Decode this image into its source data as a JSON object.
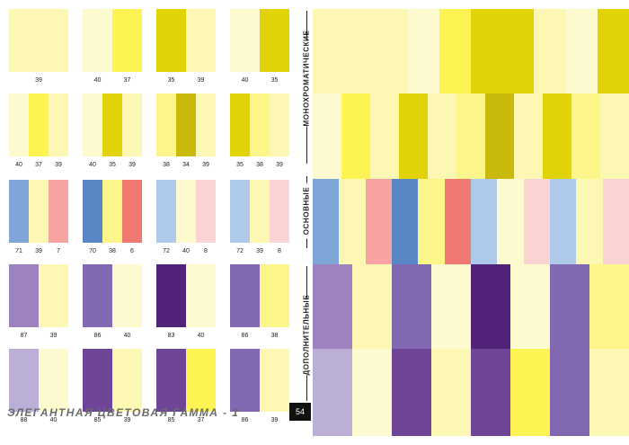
{
  "footer": {
    "title": "ЭЛЕГАНТНАЯ ЦВЕТОВАЯ ГАММА - 1",
    "page_number": "54"
  },
  "section_labels": {
    "mono": "МОНОХРОМАТИЧЕСКИЕ",
    "basic": "ОСНОВНЫЕ",
    "comp": "ДОПОЛНИТЕЛЬНЫЕ"
  },
  "palette": {
    "7": "#f7a3a1",
    "6": "#f07a71",
    "8": "#fad3d5",
    "34": "#c8b90a",
    "35": "#e2d208",
    "37": "#fdf352",
    "38": "#fcf68a",
    "39": "#fdf7b4",
    "40": "#fefad0",
    "70": "#5a86c5",
    "71": "#7ea5d8",
    "72": "#aec9e9",
    "83": "#52237a",
    "85": "#6e4597",
    "86": "#8268b0",
    "87": "#9c82bf",
    "88": "#bcafd7"
  },
  "swatches": [
    [
      "39"
    ],
    [
      "40",
      "37"
    ],
    [
      "35",
      "39"
    ],
    [
      "40",
      "35"
    ],
    [
      "40",
      "37",
      "39"
    ],
    [
      "40",
      "35",
      "39"
    ],
    [
      "38",
      "34",
      "39"
    ],
    [
      "35",
      "38",
      "39"
    ],
    [
      "71",
      "39",
      "7"
    ],
    [
      "70",
      "38",
      "6"
    ],
    [
      "72",
      "40",
      "8"
    ],
    [
      "72",
      "39",
      "8"
    ],
    [
      "87",
      "39"
    ],
    [
      "86",
      "40"
    ],
    [
      "83",
      "40"
    ],
    [
      "86",
      "38"
    ],
    [
      "88",
      "40"
    ],
    [
      "85",
      "39"
    ],
    [
      "85",
      "37"
    ],
    [
      "86",
      "39"
    ]
  ],
  "big_panel": [
    [
      "39",
      "39",
      "39",
      "40",
      "37",
      "35",
      "35",
      "39",
      "40",
      "35"
    ],
    [
      "40",
      "37",
      "39",
      "35",
      "39",
      "38",
      "34",
      "39",
      "35",
      "38",
      "39"
    ],
    [
      "71",
      "39",
      "7",
      "70",
      "38",
      "6",
      "72",
      "40",
      "8",
      "72",
      "39",
      "8"
    ],
    [
      "87",
      "39",
      "86",
      "40",
      "83",
      "40",
      "86",
      "38"
    ],
    [
      "88",
      "40",
      "85",
      "39",
      "85",
      "37",
      "86",
      "39"
    ]
  ]
}
